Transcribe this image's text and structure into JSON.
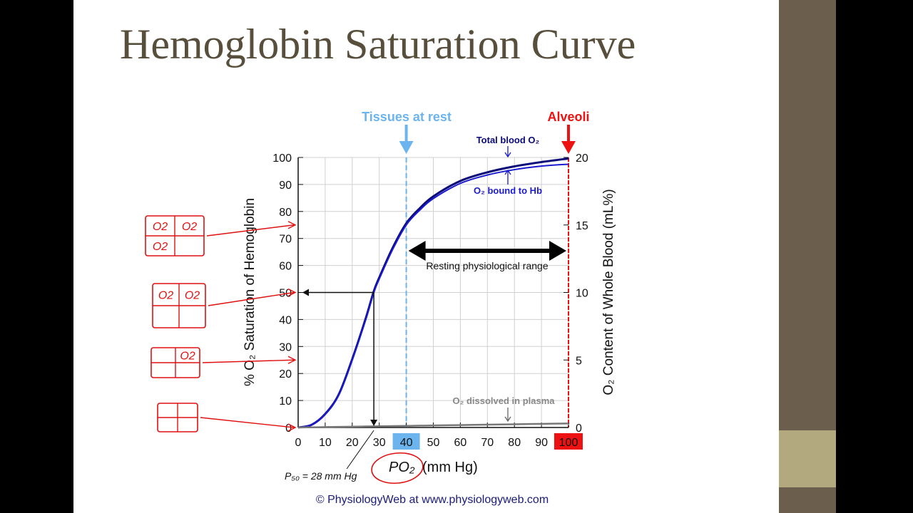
{
  "slide": {
    "title": "Hemoglobin Saturation Curve",
    "colors": {
      "title": "#574f3c",
      "side_strip": "#6b5e4c",
      "side_block": "#b3a97e"
    }
  },
  "chart_data": {
    "type": "line",
    "xlabel_main": "PO₂",
    "xlabel_unit": "(mm Hg)",
    "ylabel": "% O₂ Saturation of Hemoglobin",
    "y2label": "O₂ Content of Whole Blood (mL%)",
    "xlim": [
      0,
      100
    ],
    "ylim": [
      0,
      100
    ],
    "y2lim": [
      0,
      20
    ],
    "grid": true,
    "x_ticks": [
      "0",
      "10",
      "20",
      "30",
      "40",
      "50",
      "60",
      "70",
      "80",
      "90",
      "100"
    ],
    "y_ticks": [
      "0",
      "10",
      "20",
      "30",
      "40",
      "50",
      "60",
      "70",
      "80",
      "90",
      "100"
    ],
    "y2_ticks": [
      "0",
      "5",
      "10",
      "15",
      "20"
    ],
    "x": [
      0,
      5,
      10,
      15,
      20,
      25,
      28,
      30,
      35,
      40,
      45,
      50,
      60,
      70,
      80,
      90,
      100
    ],
    "series": [
      {
        "name": "Total blood O₂",
        "color": "#0a0a78",
        "values": [
          0,
          1,
          5,
          12.2,
          25.3,
          40.4,
          50.5,
          55.5,
          66.6,
          75.6,
          81.2,
          85.6,
          91.3,
          94.5,
          96.7,
          98.3,
          99.6
        ]
      },
      {
        "name": "O₂ bound to Hb",
        "color": "#1a1ad0",
        "values": [
          0,
          1,
          5,
          12,
          25,
          40,
          50,
          55,
          66,
          75,
          80.5,
          84.8,
          90.4,
          93.5,
          95.5,
          96.8,
          97.5
        ]
      },
      {
        "name": "O₂ dissolved in plasma",
        "color": "#777777",
        "values": [
          0,
          0.08,
          0.15,
          0.23,
          0.3,
          0.38,
          0.42,
          0.45,
          0.53,
          0.6,
          0.68,
          0.75,
          0.9,
          1.05,
          1.2,
          1.35,
          1.5
        ]
      }
    ],
    "markers": {
      "tissues": {
        "label": "Tissues at rest",
        "x": 40,
        "color": "#6cb4ee"
      },
      "alveoli": {
        "label": "Alveoli",
        "x": 100,
        "color": "#ee1111"
      },
      "range_label": "Resting physiological range",
      "p50_label": "P₅₀ = 28 mm Hg",
      "p50": 28
    },
    "credit": "© PhysiologyWeb at www.physiologyweb.com"
  },
  "annotations": {
    "color": "#e01010",
    "boxes": [
      {
        "cells": [
          "O2",
          "O2",
          "O2",
          ""
        ],
        "target_y": 75
      },
      {
        "cells": [
          "O2",
          "O2",
          "",
          ""
        ],
        "target_y": 50
      },
      {
        "cells": [
          "",
          "O2",
          "",
          ""
        ],
        "target_y": 25
      },
      {
        "cells": [
          "",
          "",
          "",
          ""
        ],
        "target_y": 0
      }
    ]
  }
}
